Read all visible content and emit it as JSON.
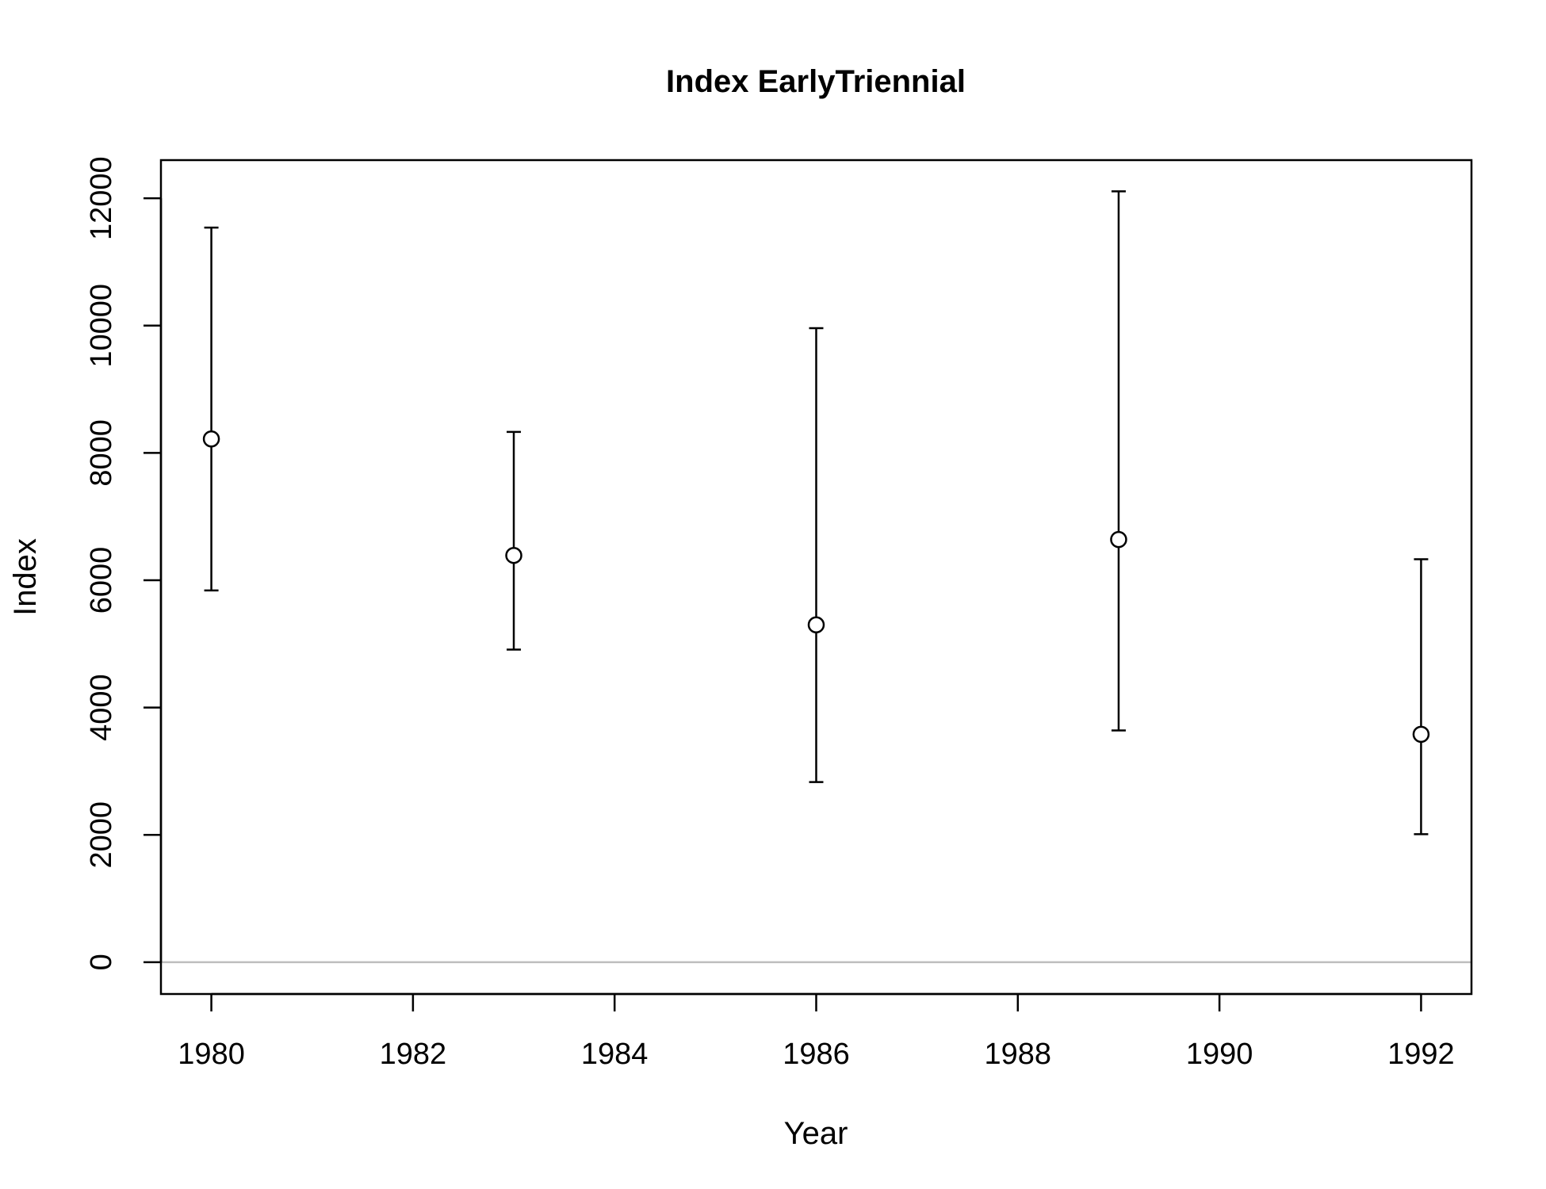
{
  "chart_data": {
    "type": "scatter",
    "title": "Index EarlyTriennial",
    "xlabel": "Year",
    "ylabel": "Index",
    "xlim": [
      1979.5,
      1992.5
    ],
    "ylim": [
      -500,
      12600
    ],
    "x_ticks": [
      1980,
      1982,
      1984,
      1986,
      1988,
      1990,
      1992
    ],
    "y_ticks": [
      0,
      2000,
      4000,
      6000,
      8000,
      10000,
      12000
    ],
    "reference_line": {
      "y": 0,
      "color": "#bebebe"
    },
    "grid": false,
    "legend": "none",
    "series": [
      {
        "marker": "open-circle",
        "color": "#000000",
        "x": [
          1980,
          1983,
          1986,
          1989,
          1992
        ],
        "y": [
          8220,
          6390,
          5300,
          6640,
          3580
        ],
        "lower": [
          5840,
          4910,
          2830,
          3640,
          2010
        ],
        "upper": [
          11540,
          8330,
          9960,
          12110,
          6330
        ]
      }
    ]
  }
}
